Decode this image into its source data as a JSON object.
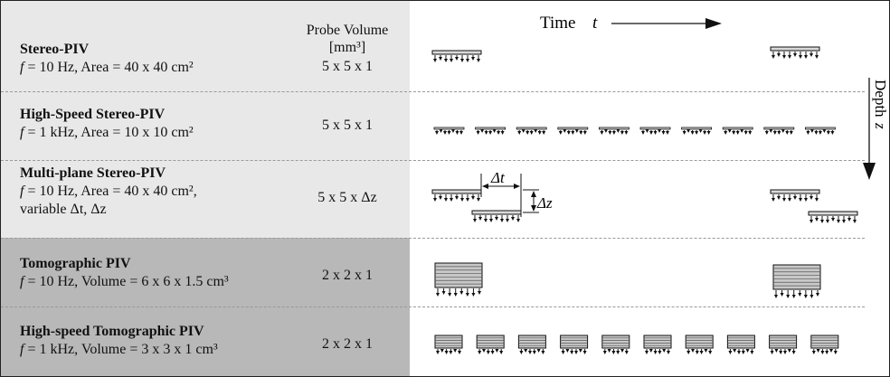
{
  "header": {
    "probe_volume_label_line1": "Probe Volume",
    "probe_volume_label_line2": "[mm³]",
    "time_label": "Time",
    "time_symbol": "t",
    "depth_label": "Depth",
    "depth_symbol": "z"
  },
  "rows": [
    {
      "name": "Stereo-PIV",
      "f_symbol": "f",
      "params": " = 10 Hz, Area = 40 x 40 cm²",
      "probe_volume": "5 x 5 x 1"
    },
    {
      "name": "High-Speed Stereo-PIV",
      "f_symbol": "f",
      "params": " = 1 kHz, Area = 10 x 10 cm²",
      "probe_volume": "5 x 5 x 1"
    },
    {
      "name": "Multi-plane Stereo-PIV",
      "f_symbol": "f",
      "params": " = 10 Hz, Area = 40 x 40 cm²,",
      "params_line2": "variable Δt, Δz",
      "probe_volume": "5 x 5 x Δz"
    },
    {
      "name": "Tomographic PIV",
      "f_symbol": "f",
      "params": " = 10 Hz, Volume = 6 x 6 x 1.5 cm³",
      "probe_volume": "2 x 2 x 1"
    },
    {
      "name": "High-speed Tomographic PIV",
      "f_symbol": "f",
      "params": " = 1 kHz, Volume = 3 x 3 x 1 cm³",
      "probe_volume": "2 x 2 x 1"
    }
  ],
  "annotations": {
    "delta_t": "Δt",
    "delta_z": "Δz"
  },
  "colors": {
    "light_gray": "#e8e8e8",
    "dark_gray": "#b8b8b8",
    "line": "#222222"
  }
}
